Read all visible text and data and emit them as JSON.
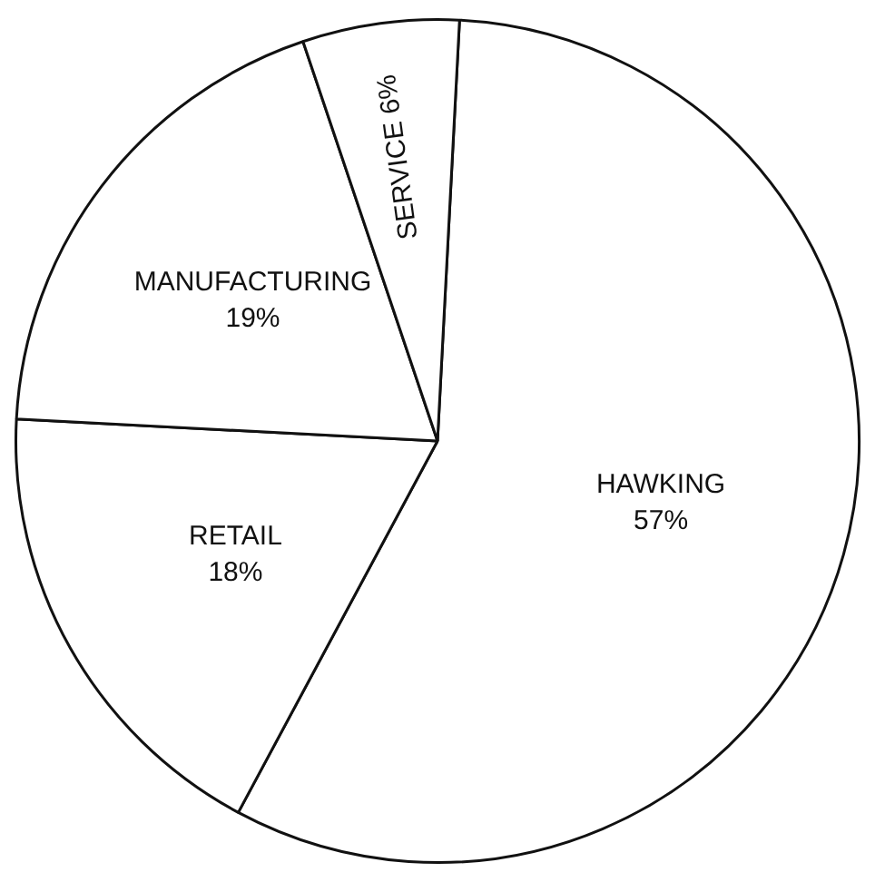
{
  "chart_data": {
    "type": "pie",
    "categories": [
      "HAWKING",
      "RETAIL",
      "MANUFACTURING",
      "SERVICE"
    ],
    "values": [
      57,
      18,
      19,
      6
    ],
    "value_labels": [
      "57%",
      "18%",
      "19%",
      "6%"
    ],
    "colors": [
      "#ffffff",
      "#ffffff",
      "#ffffff",
      "#ffffff"
    ],
    "legend": false
  }
}
